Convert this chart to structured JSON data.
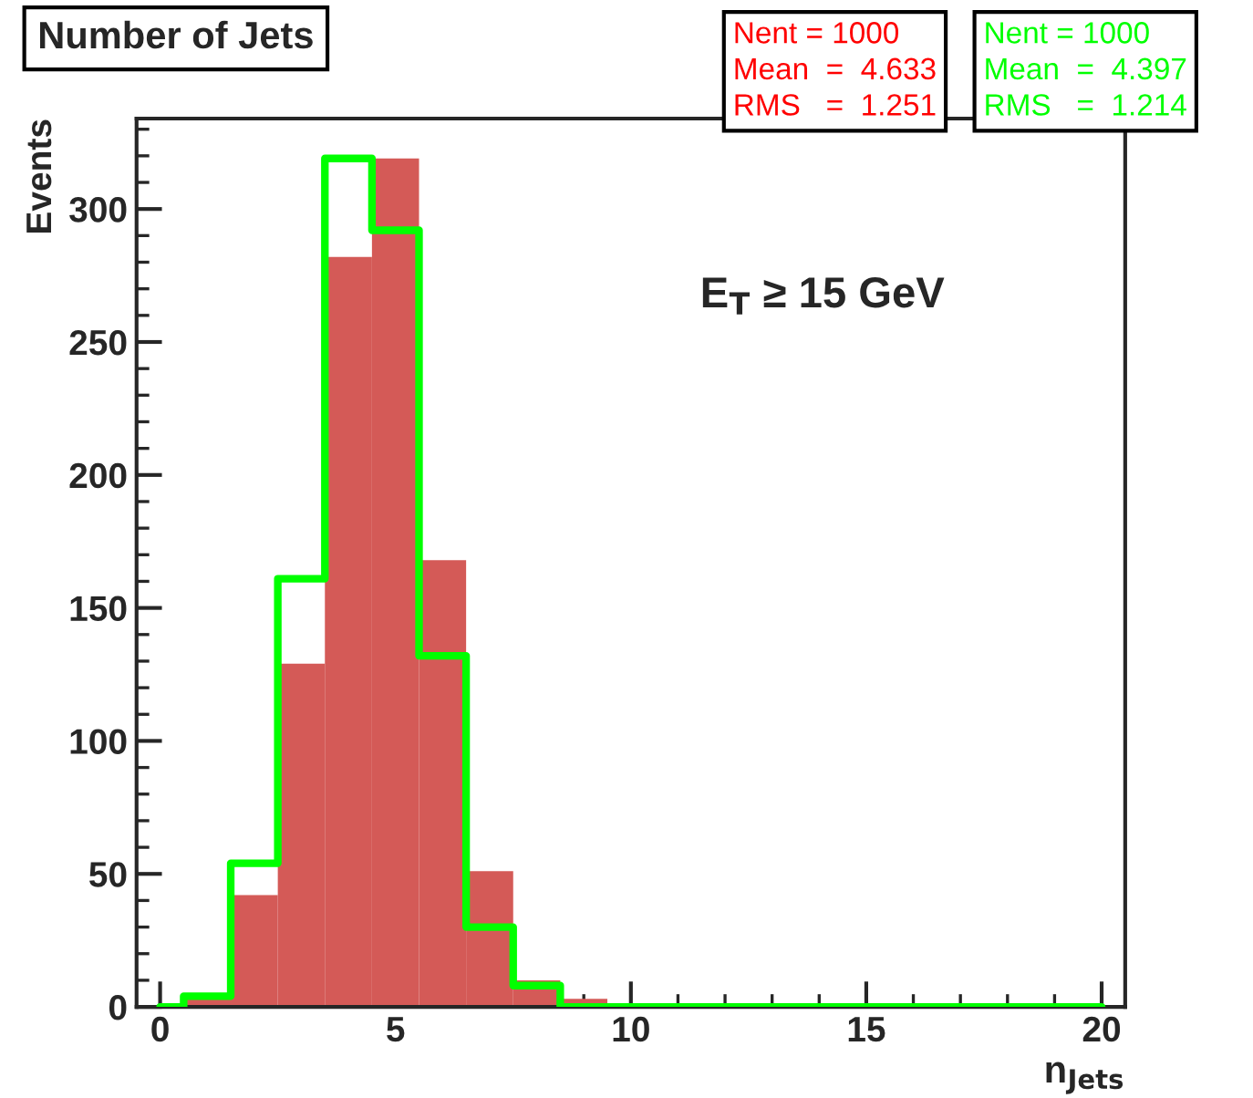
{
  "chart_data": {
    "type": "histogram",
    "title": "Number of Jets",
    "xlabel": "n$_{Jets}$",
    "ylabel": "Events",
    "bins": [
      -0.5,
      0.5,
      1.5,
      2.5,
      3.5,
      4.5,
      5.5,
      6.5,
      7.5,
      8.5,
      9.5,
      10.5,
      11.5,
      12.5,
      13.5,
      14.5,
      15.5,
      16.5,
      17.5,
      18.5,
      19.5,
      20.5
    ],
    "series": [
      {
        "color": "#d45a57",
        "values": [
          0,
          3,
          42,
          129,
          282,
          319,
          168,
          51,
          10,
          3,
          0,
          0,
          0,
          0,
          0,
          0,
          0,
          0,
          0,
          0,
          0
        ]
      },
      {
        "type": "step",
        "color": "#00ff00",
        "x": [
          0,
          1,
          2,
          3,
          4,
          5,
          6,
          7,
          8,
          9,
          10,
          11,
          12,
          13,
          14,
          15,
          16,
          17,
          18,
          19,
          20
        ],
        "values": [
          0,
          4,
          54,
          161,
          319,
          292,
          132,
          30,
          8,
          0,
          0,
          0,
          0,
          0,
          0,
          0,
          0,
          0,
          0,
          0,
          0
        ]
      }
    ],
    "annotations": [
      "E$_{T}$ ≥ 15 GeV",
      "Nent = 1000",
      "Mean  =  4.633",
      "RMS   =  1.251",
      "Nent = 1000",
      "Mean  =  4.397",
      "RMS   =  1.214"
    ],
    "xlim": [
      -0.5,
      20.5
    ],
    "ylim": [
      0,
      334
    ],
    "xticks": [
      0,
      5,
      10,
      15,
      20
    ],
    "yticks": [
      0,
      50,
      100,
      150,
      200,
      250,
      300
    ],
    "grid": false,
    "legend": false
  }
}
